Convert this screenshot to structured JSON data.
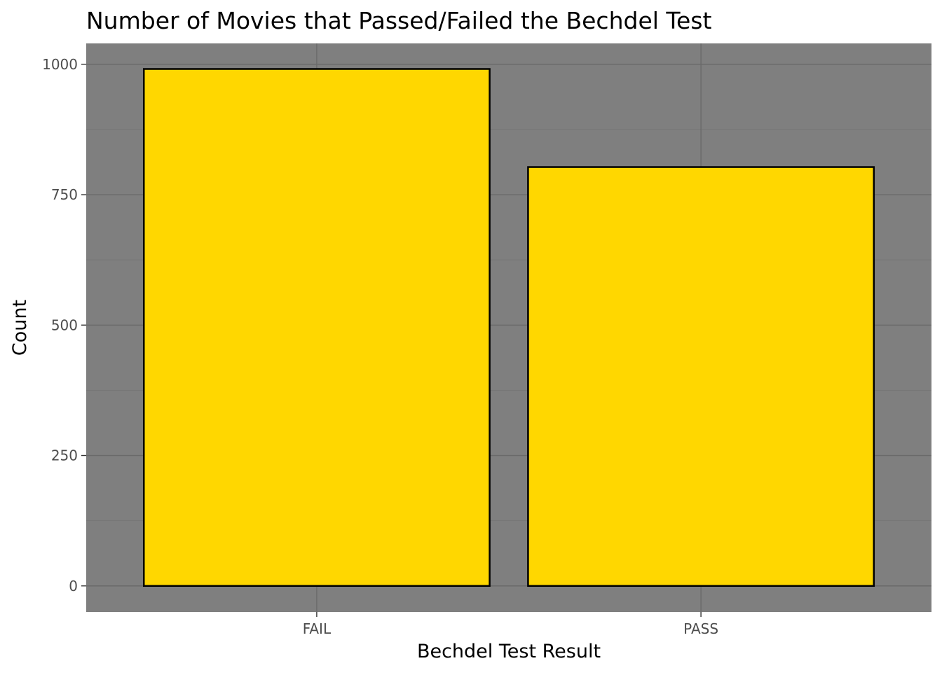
{
  "chart_data": {
    "type": "bar",
    "title": "Number of Movies that Passed/Failed the Bechdel Test",
    "xlabel": "Bechdel Test Result",
    "ylabel": "Count",
    "categories": [
      "FAIL",
      "PASS"
    ],
    "values": [
      991,
      803
    ],
    "ylim": [
      -50,
      1040
    ],
    "yticks": [
      0,
      250,
      500,
      750,
      1000
    ],
    "ytick_labels": [
      "0",
      "250",
      "500",
      "750",
      "1000"
    ],
    "grid": true,
    "colors": {
      "panel_background": "#7f7f7f",
      "grid_major": "#6a6a6a",
      "grid_minor": "#747474",
      "bar_fill": "#ffd700",
      "bar_edge": "#000000",
      "text": "#000000",
      "tick_text": "#4d4d4d"
    }
  }
}
